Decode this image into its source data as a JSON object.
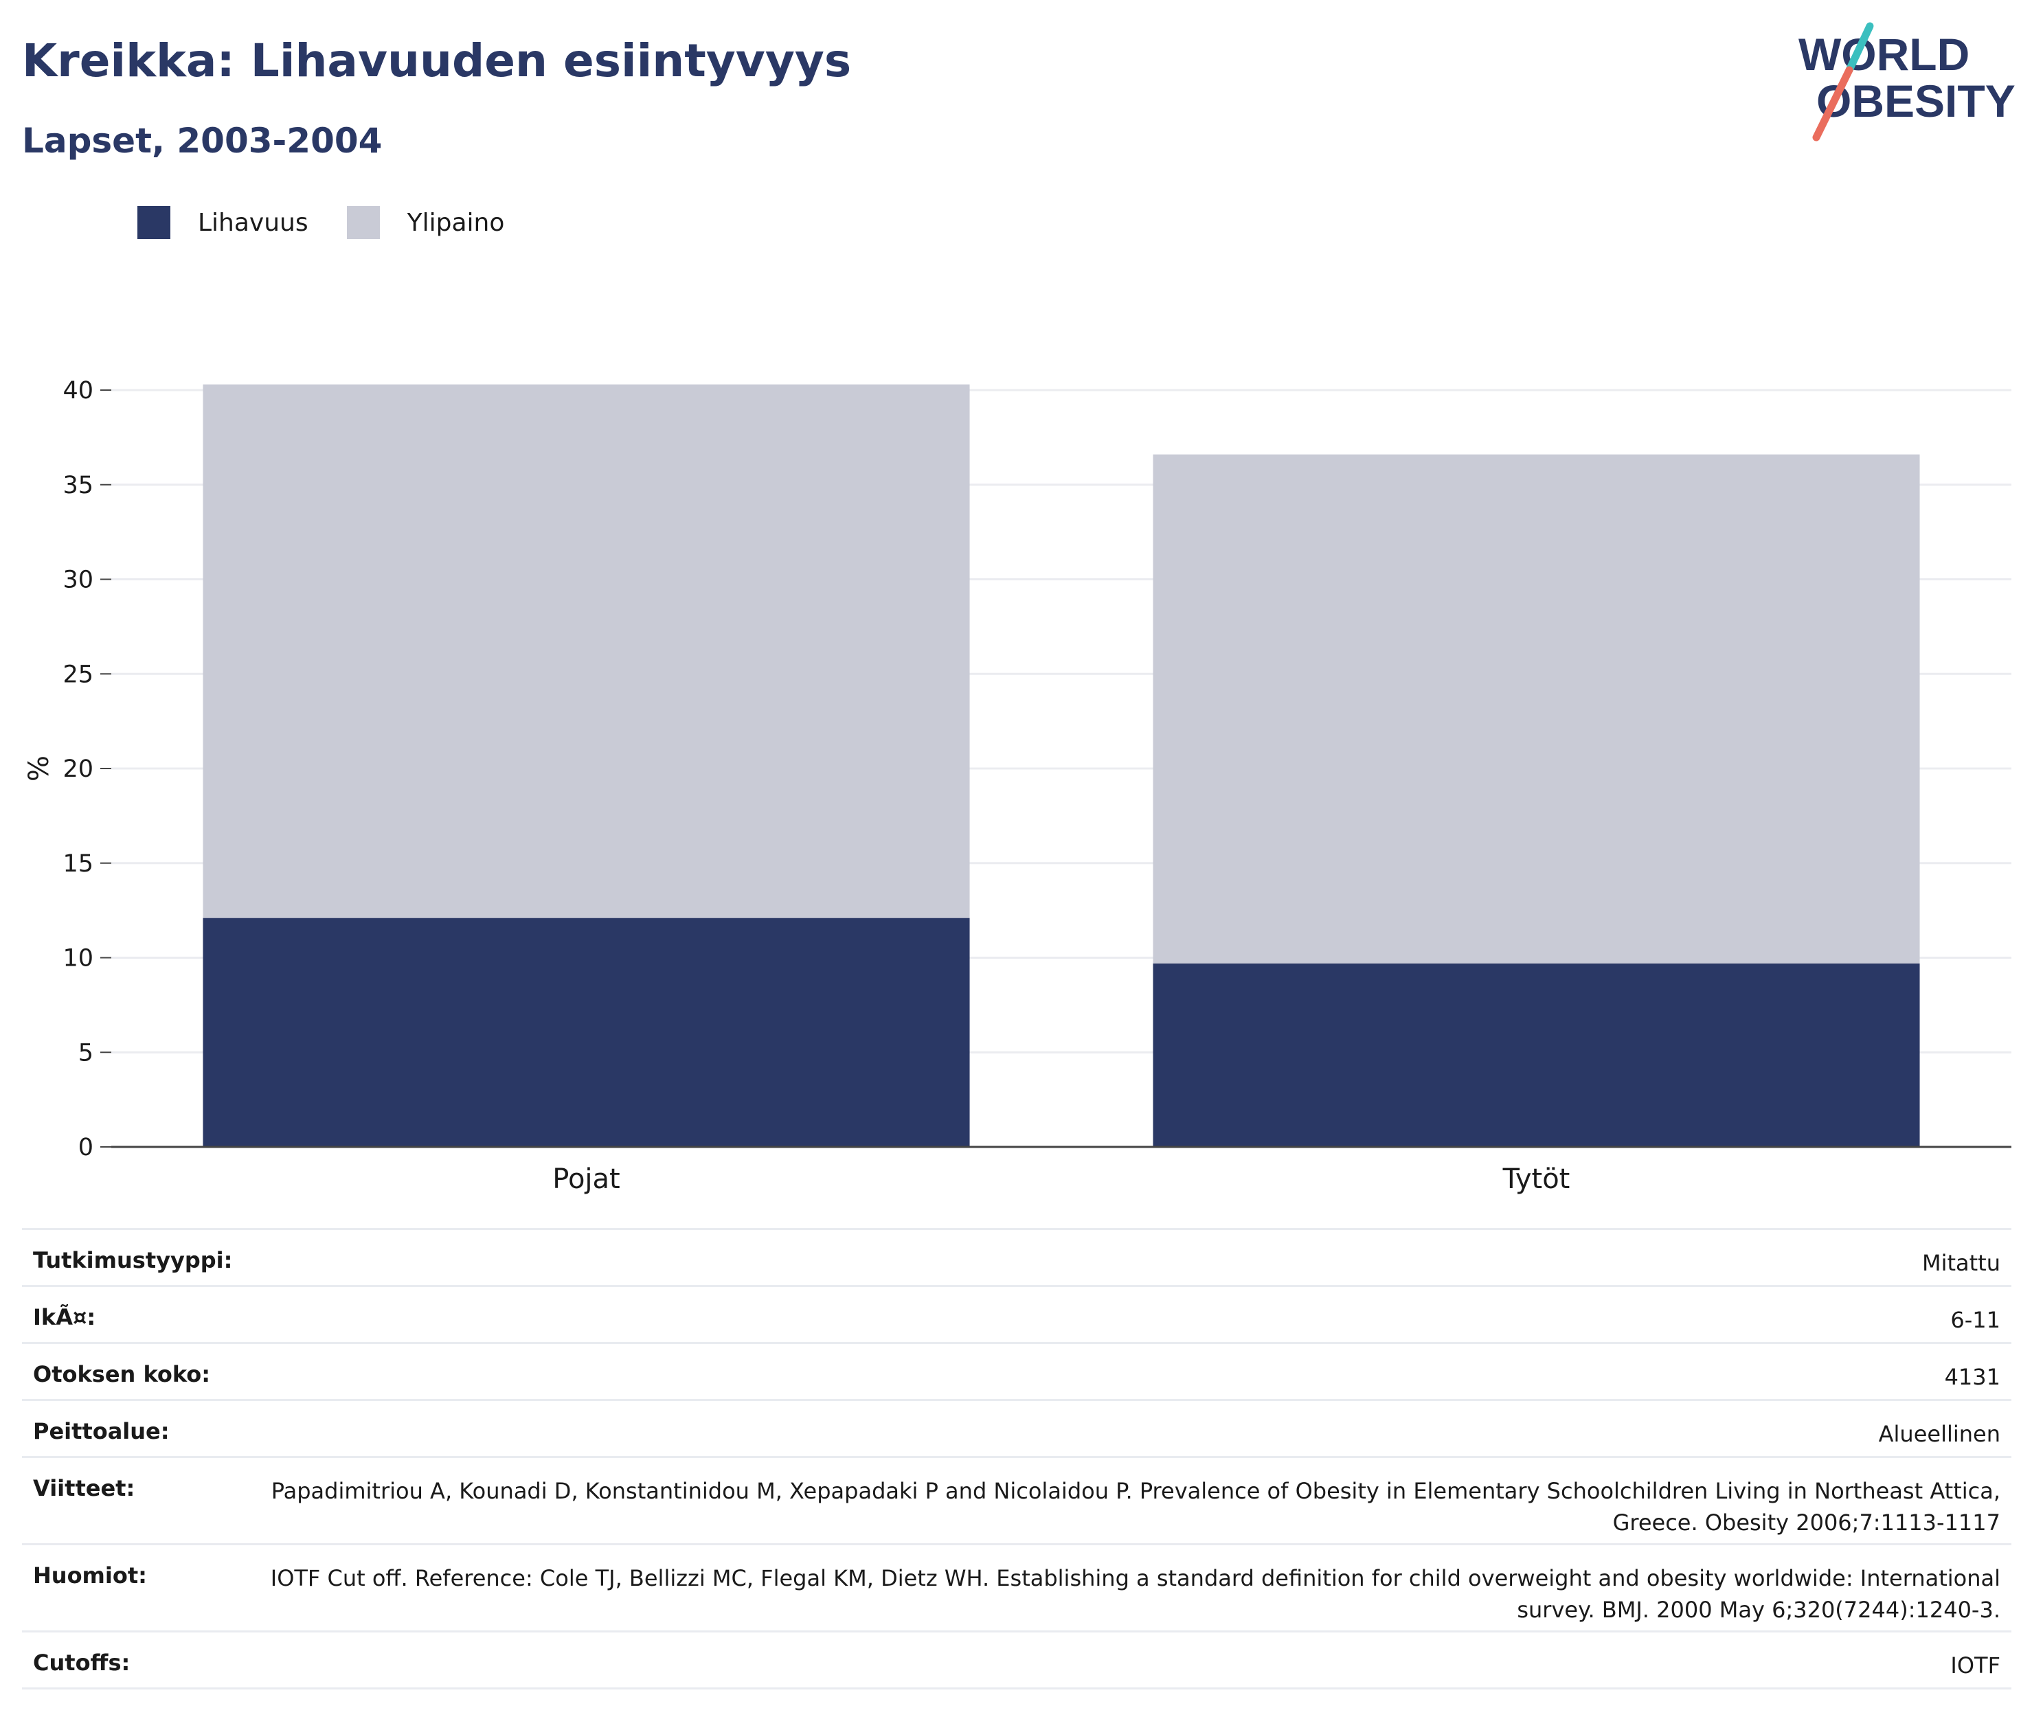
{
  "header": {
    "title": "Kreikka: Lihavuuden esiintyvyys",
    "subtitle": "Lapset, 2003-2004",
    "logo_line1": "WORLD",
    "logo_line2": "OBESITY"
  },
  "legend": [
    {
      "label": "Lihavuus",
      "color": "#2a3865"
    },
    {
      "label": "Ylipaino",
      "color": "#c9cbd6"
    }
  ],
  "chart_data": {
    "type": "bar",
    "stacked": true,
    "categories": [
      "Pojat",
      "Tytöt"
    ],
    "series": [
      {
        "name": "Lihavuus",
        "color": "#2a3865",
        "values": [
          12.1,
          9.7
        ]
      },
      {
        "name": "Ylipaino",
        "color": "#c9cbd6",
        "values": [
          28.2,
          26.9
        ]
      }
    ],
    "ylabel": "%",
    "xlabel": "",
    "ylim": [
      0,
      40
    ],
    "yticks": [
      0,
      5,
      10,
      15,
      20,
      25,
      30,
      35,
      40
    ],
    "grid": true,
    "legend_position": "top-left"
  },
  "details": [
    {
      "label": "Tutkimustyyppi:",
      "value": "Mitattu"
    },
    {
      "label": "IkÃ¤:",
      "value": "6-11"
    },
    {
      "label": "Otoksen koko:",
      "value": "4131"
    },
    {
      "label": "Peittoalue:",
      "value": "Alueellinen"
    },
    {
      "label": "Viitteet:",
      "value": "Papadimitriou A, Kounadi D, Konstantinidou M, Xepapadaki P and Nicolaidou P. Prevalence of Obesity in Elementary Schoolchildren Living in Northeast Attica, Greece. Obesity 2006;7:1113-1117"
    },
    {
      "label": "Huomiot:",
      "value": "IOTF Cut off. Reference: Cole TJ, Bellizzi MC, Flegal KM, Dietz WH. Establishing a standard definition for child overweight and obesity worldwide: International survey. BMJ. 2000 May 6;320(7244):1240-3."
    },
    {
      "label": "Cutoffs:",
      "value": "IOTF"
    }
  ]
}
